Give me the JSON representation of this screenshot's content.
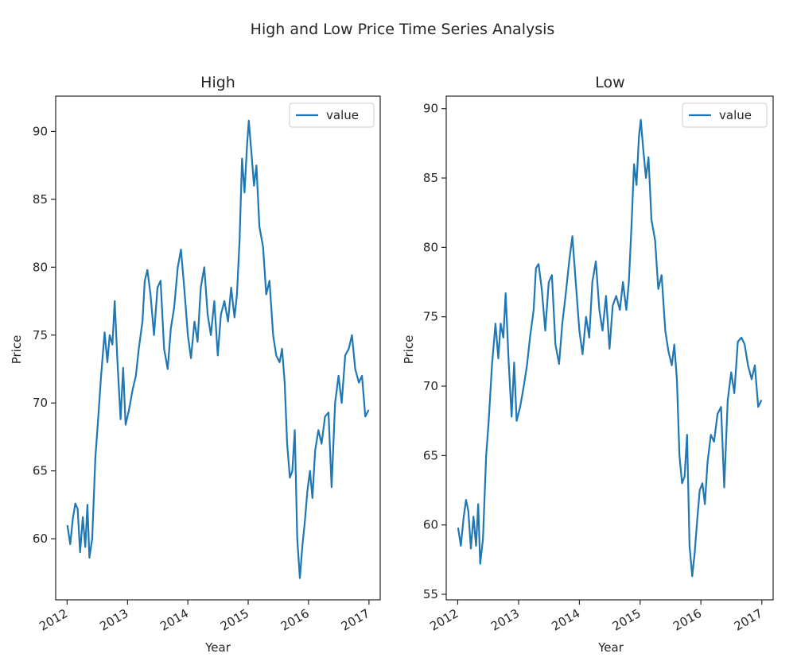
{
  "figure": {
    "suptitle": "High and Low Price Time Series Analysis",
    "line_color": "#1f77b4",
    "axes_color": "#262626"
  },
  "chart_data": [
    {
      "type": "line",
      "title": "High",
      "xlabel": "Year",
      "ylabel": "Price",
      "x_ticks": [
        "2012",
        "2013",
        "2014",
        "2015",
        "2016",
        "2017"
      ],
      "y_ticks": [
        60,
        65,
        70,
        75,
        80,
        85,
        90
      ],
      "xlim": [
        "2011-10-24",
        "2017-03-10"
      ],
      "ylim": [
        55.5,
        92.6
      ],
      "legend": "top-right",
      "grid": false,
      "series": [
        {
          "name": "value",
          "x": [
            "2012-01-03",
            "2012-01-20",
            "2012-02-05",
            "2012-02-20",
            "2012-03-05",
            "2012-03-20",
            "2012-04-05",
            "2012-04-20",
            "2012-05-03",
            "2012-05-15",
            "2012-06-01",
            "2012-06-20",
            "2012-07-05",
            "2012-07-25",
            "2012-08-15",
            "2012-09-01",
            "2012-09-15",
            "2012-10-01",
            "2012-10-15",
            "2012-11-01",
            "2012-11-20",
            "2012-12-05",
            "2012-12-20",
            "2013-01-10",
            "2013-02-01",
            "2013-02-20",
            "2013-03-10",
            "2013-04-01",
            "2013-04-15",
            "2013-05-01",
            "2013-05-20",
            "2013-06-10",
            "2013-07-01",
            "2013-07-20",
            "2013-08-10",
            "2013-09-01",
            "2013-09-20",
            "2013-10-10",
            "2013-11-01",
            "2013-11-20",
            "2013-12-10",
            "2014-01-01",
            "2014-01-20",
            "2014-02-10",
            "2014-03-01",
            "2014-03-20",
            "2014-04-10",
            "2014-05-01",
            "2014-05-20",
            "2014-06-10",
            "2014-07-01",
            "2014-07-20",
            "2014-08-10",
            "2014-09-01",
            "2014-09-20",
            "2014-10-10",
            "2014-10-25",
            "2014-11-10",
            "2014-11-25",
            "2014-12-10",
            "2014-12-25",
            "2015-01-05",
            "2015-01-20",
            "2015-02-05",
            "2015-02-20",
            "2015-03-10",
            "2015-04-01",
            "2015-04-20",
            "2015-05-10",
            "2015-06-01",
            "2015-06-20",
            "2015-07-10",
            "2015-07-25",
            "2015-08-10",
            "2015-08-25",
            "2015-09-10",
            "2015-09-25",
            "2015-10-10",
            "2015-10-25",
            "2015-11-10",
            "2015-11-25",
            "2015-12-10",
            "2015-12-25",
            "2016-01-10",
            "2016-01-25",
            "2016-02-10",
            "2016-03-01",
            "2016-03-20",
            "2016-04-10",
            "2016-05-01",
            "2016-05-20",
            "2016-06-10",
            "2016-07-01",
            "2016-07-20",
            "2016-08-10",
            "2016-09-01",
            "2016-09-20",
            "2016-10-10",
            "2016-11-01",
            "2016-11-20",
            "2016-12-10",
            "2016-12-30"
          ],
          "y": [
            61.0,
            59.6,
            61.5,
            62.6,
            62.2,
            59.0,
            61.6,
            59.4,
            62.5,
            58.6,
            60.0,
            66.0,
            68.5,
            72.0,
            75.2,
            73.0,
            75.0,
            74.3,
            77.5,
            73.0,
            68.8,
            72.6,
            68.4,
            69.5,
            71.0,
            72.0,
            74.0,
            76.0,
            79.0,
            79.8,
            78.0,
            75.0,
            78.5,
            79.0,
            74.0,
            72.5,
            75.5,
            77.0,
            80.0,
            81.3,
            78.5,
            75.0,
            73.3,
            76.0,
            74.5,
            78.5,
            80.0,
            76.5,
            75.0,
            77.5,
            73.5,
            76.5,
            77.5,
            76.0,
            78.5,
            76.3,
            78.0,
            82.0,
            88.0,
            85.5,
            89.0,
            90.8,
            88.5,
            86.0,
            87.5,
            83.0,
            81.5,
            78.0,
            79.0,
            75.0,
            73.5,
            73.0,
            74.0,
            71.5,
            67.0,
            64.5,
            65.0,
            68.0,
            60.0,
            57.1,
            59.5,
            61.3,
            63.5,
            65.0,
            63.0,
            66.5,
            68.0,
            67.0,
            69.0,
            69.3,
            63.8,
            70.0,
            72.0,
            70.0,
            73.5,
            74.0,
            75.0,
            72.5,
            71.5,
            72.0,
            69.0,
            69.5
          ]
        }
      ]
    },
    {
      "type": "line",
      "title": "Low",
      "xlabel": "Year",
      "ylabel": "Price",
      "x_ticks": [
        "2012",
        "2013",
        "2014",
        "2015",
        "2016",
        "2017"
      ],
      "y_ticks": [
        55,
        60,
        65,
        70,
        75,
        80,
        85,
        90
      ],
      "xlim": [
        "2011-10-24",
        "2017-03-10"
      ],
      "ylim": [
        54.6,
        90.9
      ],
      "legend": "top-right",
      "grid": false,
      "series": [
        {
          "name": "value",
          "x": [
            "2012-01-03",
            "2012-01-20",
            "2012-02-05",
            "2012-02-20",
            "2012-03-05",
            "2012-03-20",
            "2012-04-05",
            "2012-04-20",
            "2012-05-03",
            "2012-05-15",
            "2012-06-01",
            "2012-06-20",
            "2012-07-05",
            "2012-07-25",
            "2012-08-15",
            "2012-09-01",
            "2012-09-15",
            "2012-10-01",
            "2012-10-15",
            "2012-11-01",
            "2012-11-20",
            "2012-12-05",
            "2012-12-20",
            "2013-01-10",
            "2013-02-01",
            "2013-02-20",
            "2013-03-10",
            "2013-04-01",
            "2013-04-15",
            "2013-05-01",
            "2013-05-20",
            "2013-06-10",
            "2013-07-01",
            "2013-07-20",
            "2013-08-10",
            "2013-09-01",
            "2013-09-20",
            "2013-10-10",
            "2013-11-01",
            "2013-11-20",
            "2013-12-10",
            "2014-01-01",
            "2014-01-20",
            "2014-02-10",
            "2014-03-01",
            "2014-03-20",
            "2014-04-10",
            "2014-05-01",
            "2014-05-20",
            "2014-06-10",
            "2014-07-01",
            "2014-07-20",
            "2014-08-10",
            "2014-09-01",
            "2014-09-20",
            "2014-10-10",
            "2014-10-25",
            "2014-11-10",
            "2014-11-25",
            "2014-12-10",
            "2014-12-25",
            "2015-01-05",
            "2015-01-20",
            "2015-02-05",
            "2015-02-20",
            "2015-03-10",
            "2015-04-01",
            "2015-04-20",
            "2015-05-10",
            "2015-06-01",
            "2015-06-20",
            "2015-07-10",
            "2015-07-25",
            "2015-08-10",
            "2015-08-25",
            "2015-09-10",
            "2015-09-25",
            "2015-10-10",
            "2015-10-25",
            "2015-11-10",
            "2015-11-25",
            "2015-12-10",
            "2015-12-25",
            "2016-01-10",
            "2016-01-25",
            "2016-02-10",
            "2016-03-01",
            "2016-03-20",
            "2016-04-10",
            "2016-05-01",
            "2016-05-20",
            "2016-06-10",
            "2016-07-01",
            "2016-07-20",
            "2016-08-10",
            "2016-09-01",
            "2016-09-20",
            "2016-10-10",
            "2016-11-01",
            "2016-11-20",
            "2016-12-10",
            "2016-12-30"
          ],
          "y": [
            59.8,
            58.5,
            60.5,
            61.8,
            61.0,
            58.3,
            60.6,
            58.5,
            61.5,
            57.2,
            59.0,
            65.0,
            67.5,
            71.5,
            74.5,
            72.0,
            74.5,
            73.5,
            76.7,
            72.0,
            67.8,
            71.7,
            67.5,
            68.5,
            70.0,
            71.5,
            73.5,
            75.5,
            78.5,
            78.8,
            77.0,
            74.0,
            77.5,
            78.0,
            73.0,
            71.6,
            74.5,
            76.5,
            79.0,
            80.8,
            77.5,
            74.0,
            72.3,
            75.0,
            73.5,
            77.5,
            79.0,
            75.5,
            74.0,
            76.5,
            72.7,
            75.8,
            76.5,
            75.5,
            77.5,
            75.5,
            77.5,
            81.5,
            86.0,
            84.5,
            88.0,
            89.2,
            87.0,
            85.0,
            86.5,
            82.0,
            80.5,
            77.0,
            78.0,
            74.0,
            72.5,
            71.5,
            73.0,
            70.5,
            65.0,
            63.0,
            63.5,
            66.5,
            58.5,
            56.3,
            58.0,
            60.4,
            62.5,
            63.0,
            61.5,
            64.5,
            66.5,
            66.0,
            68.0,
            68.5,
            62.7,
            69.0,
            71.0,
            69.5,
            73.2,
            73.5,
            73.0,
            71.5,
            70.5,
            71.5,
            68.5,
            69.0
          ]
        }
      ]
    }
  ]
}
